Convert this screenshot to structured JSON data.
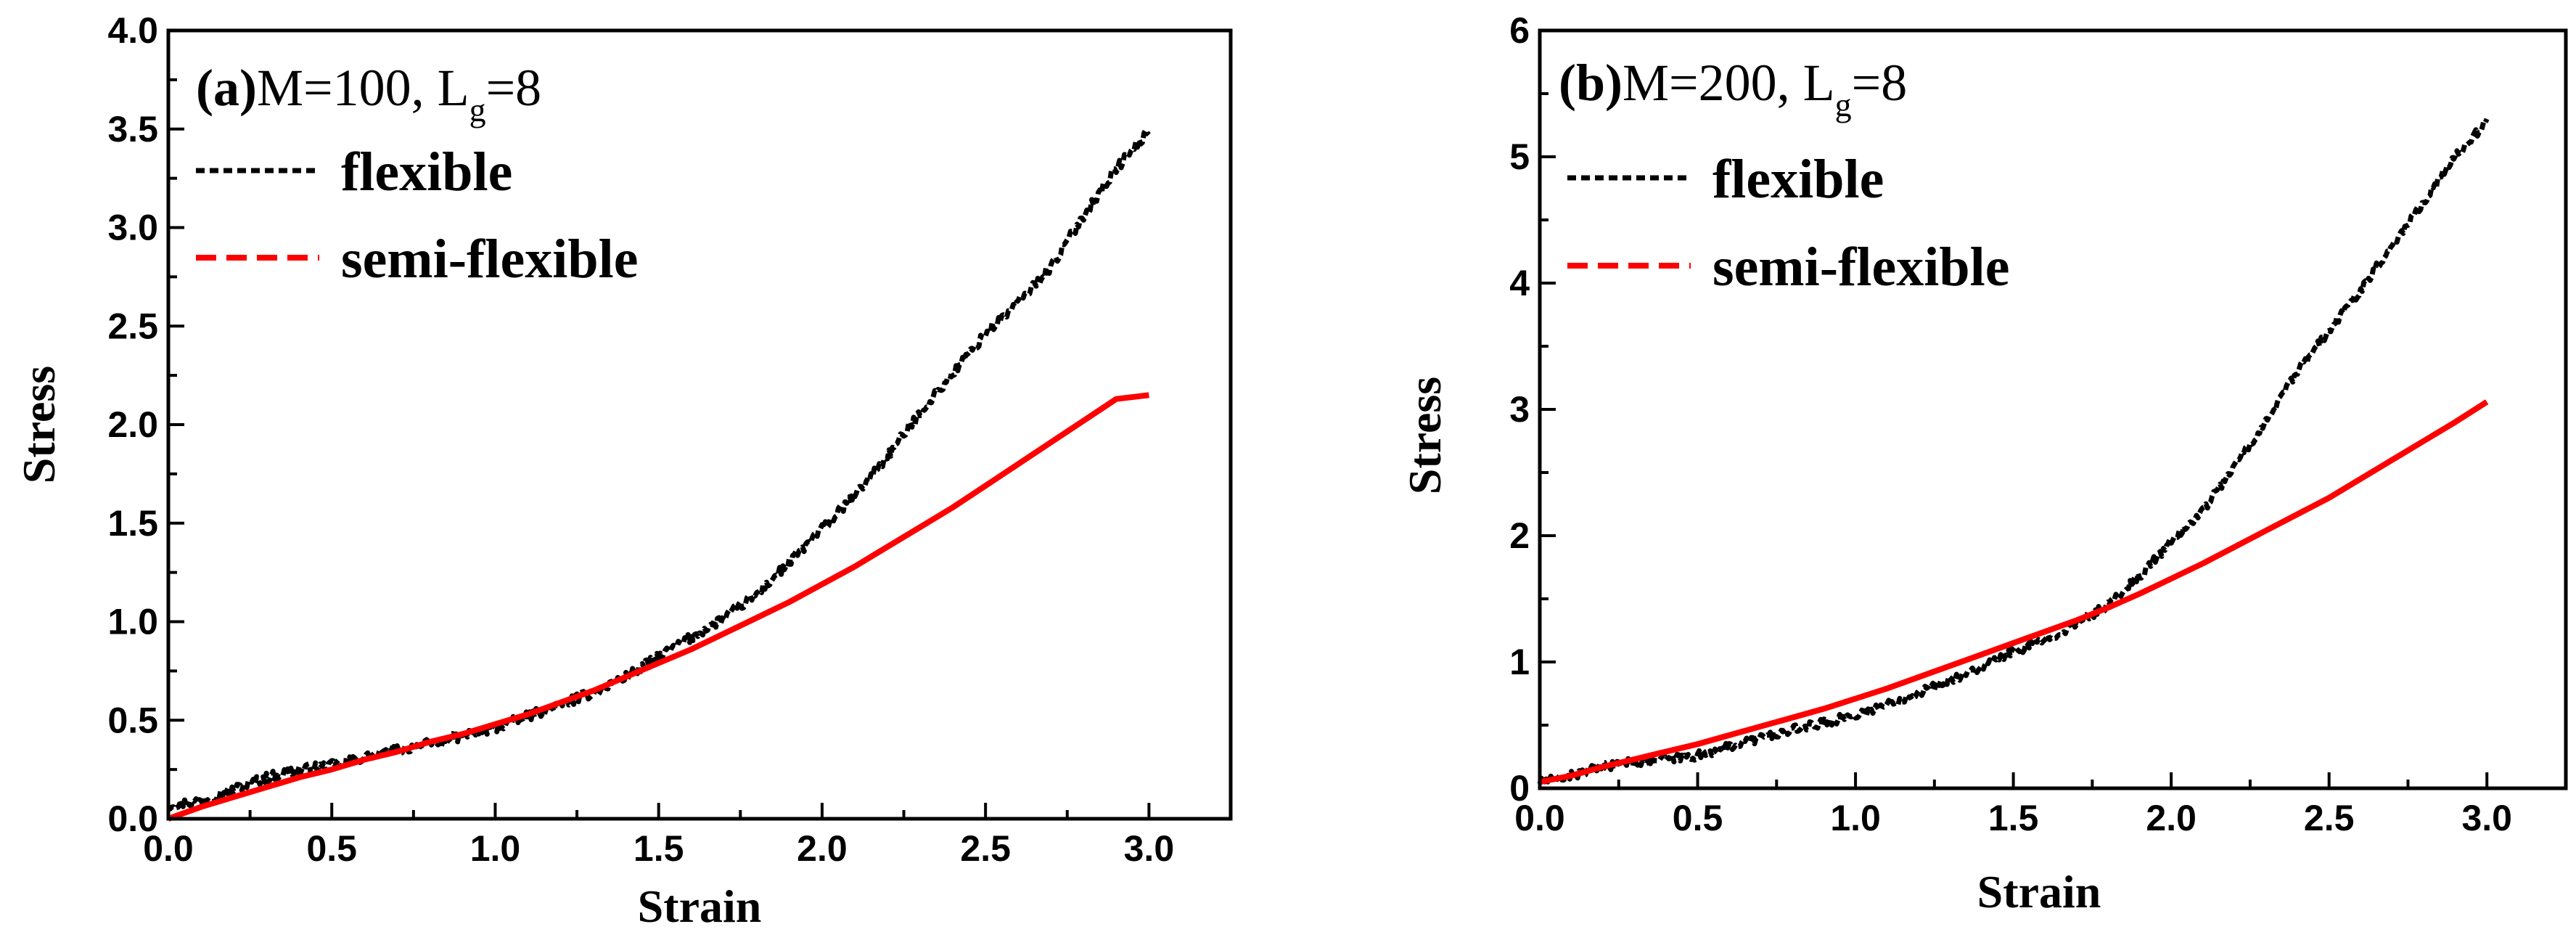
{
  "chart_data": [
    {
      "type": "line",
      "panel_tag": "(a)",
      "title_prefix": "M=100, L",
      "title_subscript": "g",
      "title_suffix": "=8",
      "xlabel": "Strain",
      "ylabel": "Stress",
      "xlim": [
        0,
        3.25
      ],
      "ylim": [
        0,
        4.0
      ],
      "xticks": [
        0.0,
        0.5,
        1.0,
        1.5,
        2.0,
        2.5,
        3.0
      ],
      "xtick_labels": [
        "0.0",
        "0.5",
        "1.0",
        "1.5",
        "2.0",
        "2.5",
        "3.0"
      ],
      "yticks": [
        0.0,
        0.5,
        1.0,
        1.5,
        2.0,
        2.5,
        3.0,
        3.5,
        4.0
      ],
      "ytick_labels": [
        "0.0",
        "0.5",
        "1.0",
        "1.5",
        "2.0",
        "2.5",
        "3.0",
        "3.5",
        "4.0"
      ],
      "legend_position": "top-left",
      "grid": false,
      "series": [
        {
          "name": "flexible",
          "style": "dotted",
          "color": "#000000",
          "x": [
            0.0,
            0.1,
            0.2,
            0.3,
            0.4,
            0.5,
            0.6,
            0.7,
            0.8,
            0.9,
            1.0,
            1.1,
            1.2,
            1.3,
            1.4,
            1.5,
            1.6,
            1.7,
            1.8,
            1.9,
            2.0,
            2.1,
            2.2,
            2.3,
            2.4,
            2.5,
            2.6,
            2.7,
            2.8,
            2.9,
            3.0
          ],
          "y": [
            0.07,
            0.09,
            0.15,
            0.21,
            0.25,
            0.27,
            0.31,
            0.35,
            0.38,
            0.42,
            0.46,
            0.52,
            0.58,
            0.64,
            0.72,
            0.82,
            0.92,
            1.02,
            1.14,
            1.3,
            1.47,
            1.64,
            1.84,
            2.06,
            2.26,
            2.46,
            2.62,
            2.8,
            3.06,
            3.3,
            3.49
          ],
          "jitter": 0.025
        },
        {
          "name": "semi-flexible",
          "style": "dashed",
          "color": "#ff0000",
          "x": [
            0.0,
            0.1,
            0.2,
            0.3,
            0.4,
            0.5,
            0.6,
            0.7,
            0.8,
            0.9,
            1.0,
            1.1,
            1.2,
            1.3,
            1.4,
            1.5,
            1.6,
            1.7,
            1.8,
            1.9,
            2.0,
            2.1,
            2.2,
            2.3,
            2.4,
            2.5,
            2.6,
            2.7,
            2.8,
            2.9,
            3.0
          ],
          "y": [
            0.0,
            0.06,
            0.11,
            0.16,
            0.21,
            0.25,
            0.3,
            0.34,
            0.39,
            0.43,
            0.48,
            0.53,
            0.59,
            0.65,
            0.72,
            0.79,
            0.86,
            0.94,
            1.02,
            1.1,
            1.19,
            1.28,
            1.38,
            1.48,
            1.58,
            1.69,
            1.8,
            1.91,
            2.02,
            2.13,
            2.15
          ],
          "jitter": 0
        }
      ]
    },
    {
      "type": "line",
      "panel_tag": "(b)",
      "title_prefix": "M=200, L",
      "title_subscript": "g",
      "title_suffix": "=8",
      "xlabel": "Strain",
      "ylabel": "Stress",
      "xlim": [
        0,
        3.25
      ],
      "ylim": [
        0,
        6
      ],
      "xticks": [
        0.0,
        0.5,
        1.0,
        1.5,
        2.0,
        2.5,
        3.0
      ],
      "xtick_labels": [
        "0.0",
        "0.5",
        "1.0",
        "1.5",
        "2.0",
        "2.5",
        "3.0"
      ],
      "yticks": [
        0,
        1,
        2,
        3,
        4,
        5,
        6
      ],
      "ytick_labels": [
        "0",
        "1",
        "2",
        "3",
        "4",
        "5",
        "6"
      ],
      "legend_position": "top-left",
      "grid": false,
      "series": [
        {
          "name": "flexible",
          "style": "dotted",
          "color": "#000000",
          "x": [
            0.0,
            0.1,
            0.2,
            0.3,
            0.4,
            0.5,
            0.6,
            0.7,
            0.8,
            0.9,
            1.0,
            1.1,
            1.2,
            1.3,
            1.4,
            1.5,
            1.6,
            1.7,
            1.8,
            1.9,
            2.0,
            2.1,
            2.2,
            2.3,
            2.4,
            2.5,
            2.6,
            2.7,
            2.8,
            2.9,
            3.0
          ],
          "y": [
            0.05,
            0.1,
            0.17,
            0.21,
            0.23,
            0.26,
            0.33,
            0.4,
            0.46,
            0.52,
            0.58,
            0.66,
            0.76,
            0.86,
            0.96,
            1.08,
            1.18,
            1.3,
            1.45,
            1.68,
            1.95,
            2.2,
            2.55,
            2.9,
            3.3,
            3.62,
            3.95,
            4.3,
            4.65,
            5.0,
            5.28
          ],
          "jitter": 0.035
        },
        {
          "name": "semi-flexible",
          "style": "dashed",
          "color": "#ff0000",
          "x": [
            0.0,
            0.1,
            0.2,
            0.3,
            0.4,
            0.5,
            0.6,
            0.7,
            0.8,
            0.9,
            1.0,
            1.1,
            1.2,
            1.3,
            1.4,
            1.5,
            1.6,
            1.7,
            1.8,
            1.9,
            2.0,
            2.1,
            2.2,
            2.3,
            2.4,
            2.5,
            2.6,
            2.7,
            2.8,
            2.9,
            3.0
          ],
          "y": [
            0.05,
            0.1,
            0.17,
            0.23,
            0.29,
            0.35,
            0.42,
            0.49,
            0.56,
            0.63,
            0.71,
            0.79,
            0.88,
            0.97,
            1.06,
            1.15,
            1.24,
            1.33,
            1.43,
            1.54,
            1.66,
            1.78,
            1.91,
            2.04,
            2.17,
            2.3,
            2.45,
            2.6,
            2.75,
            2.9,
            3.06
          ],
          "jitter": 0
        }
      ]
    }
  ]
}
